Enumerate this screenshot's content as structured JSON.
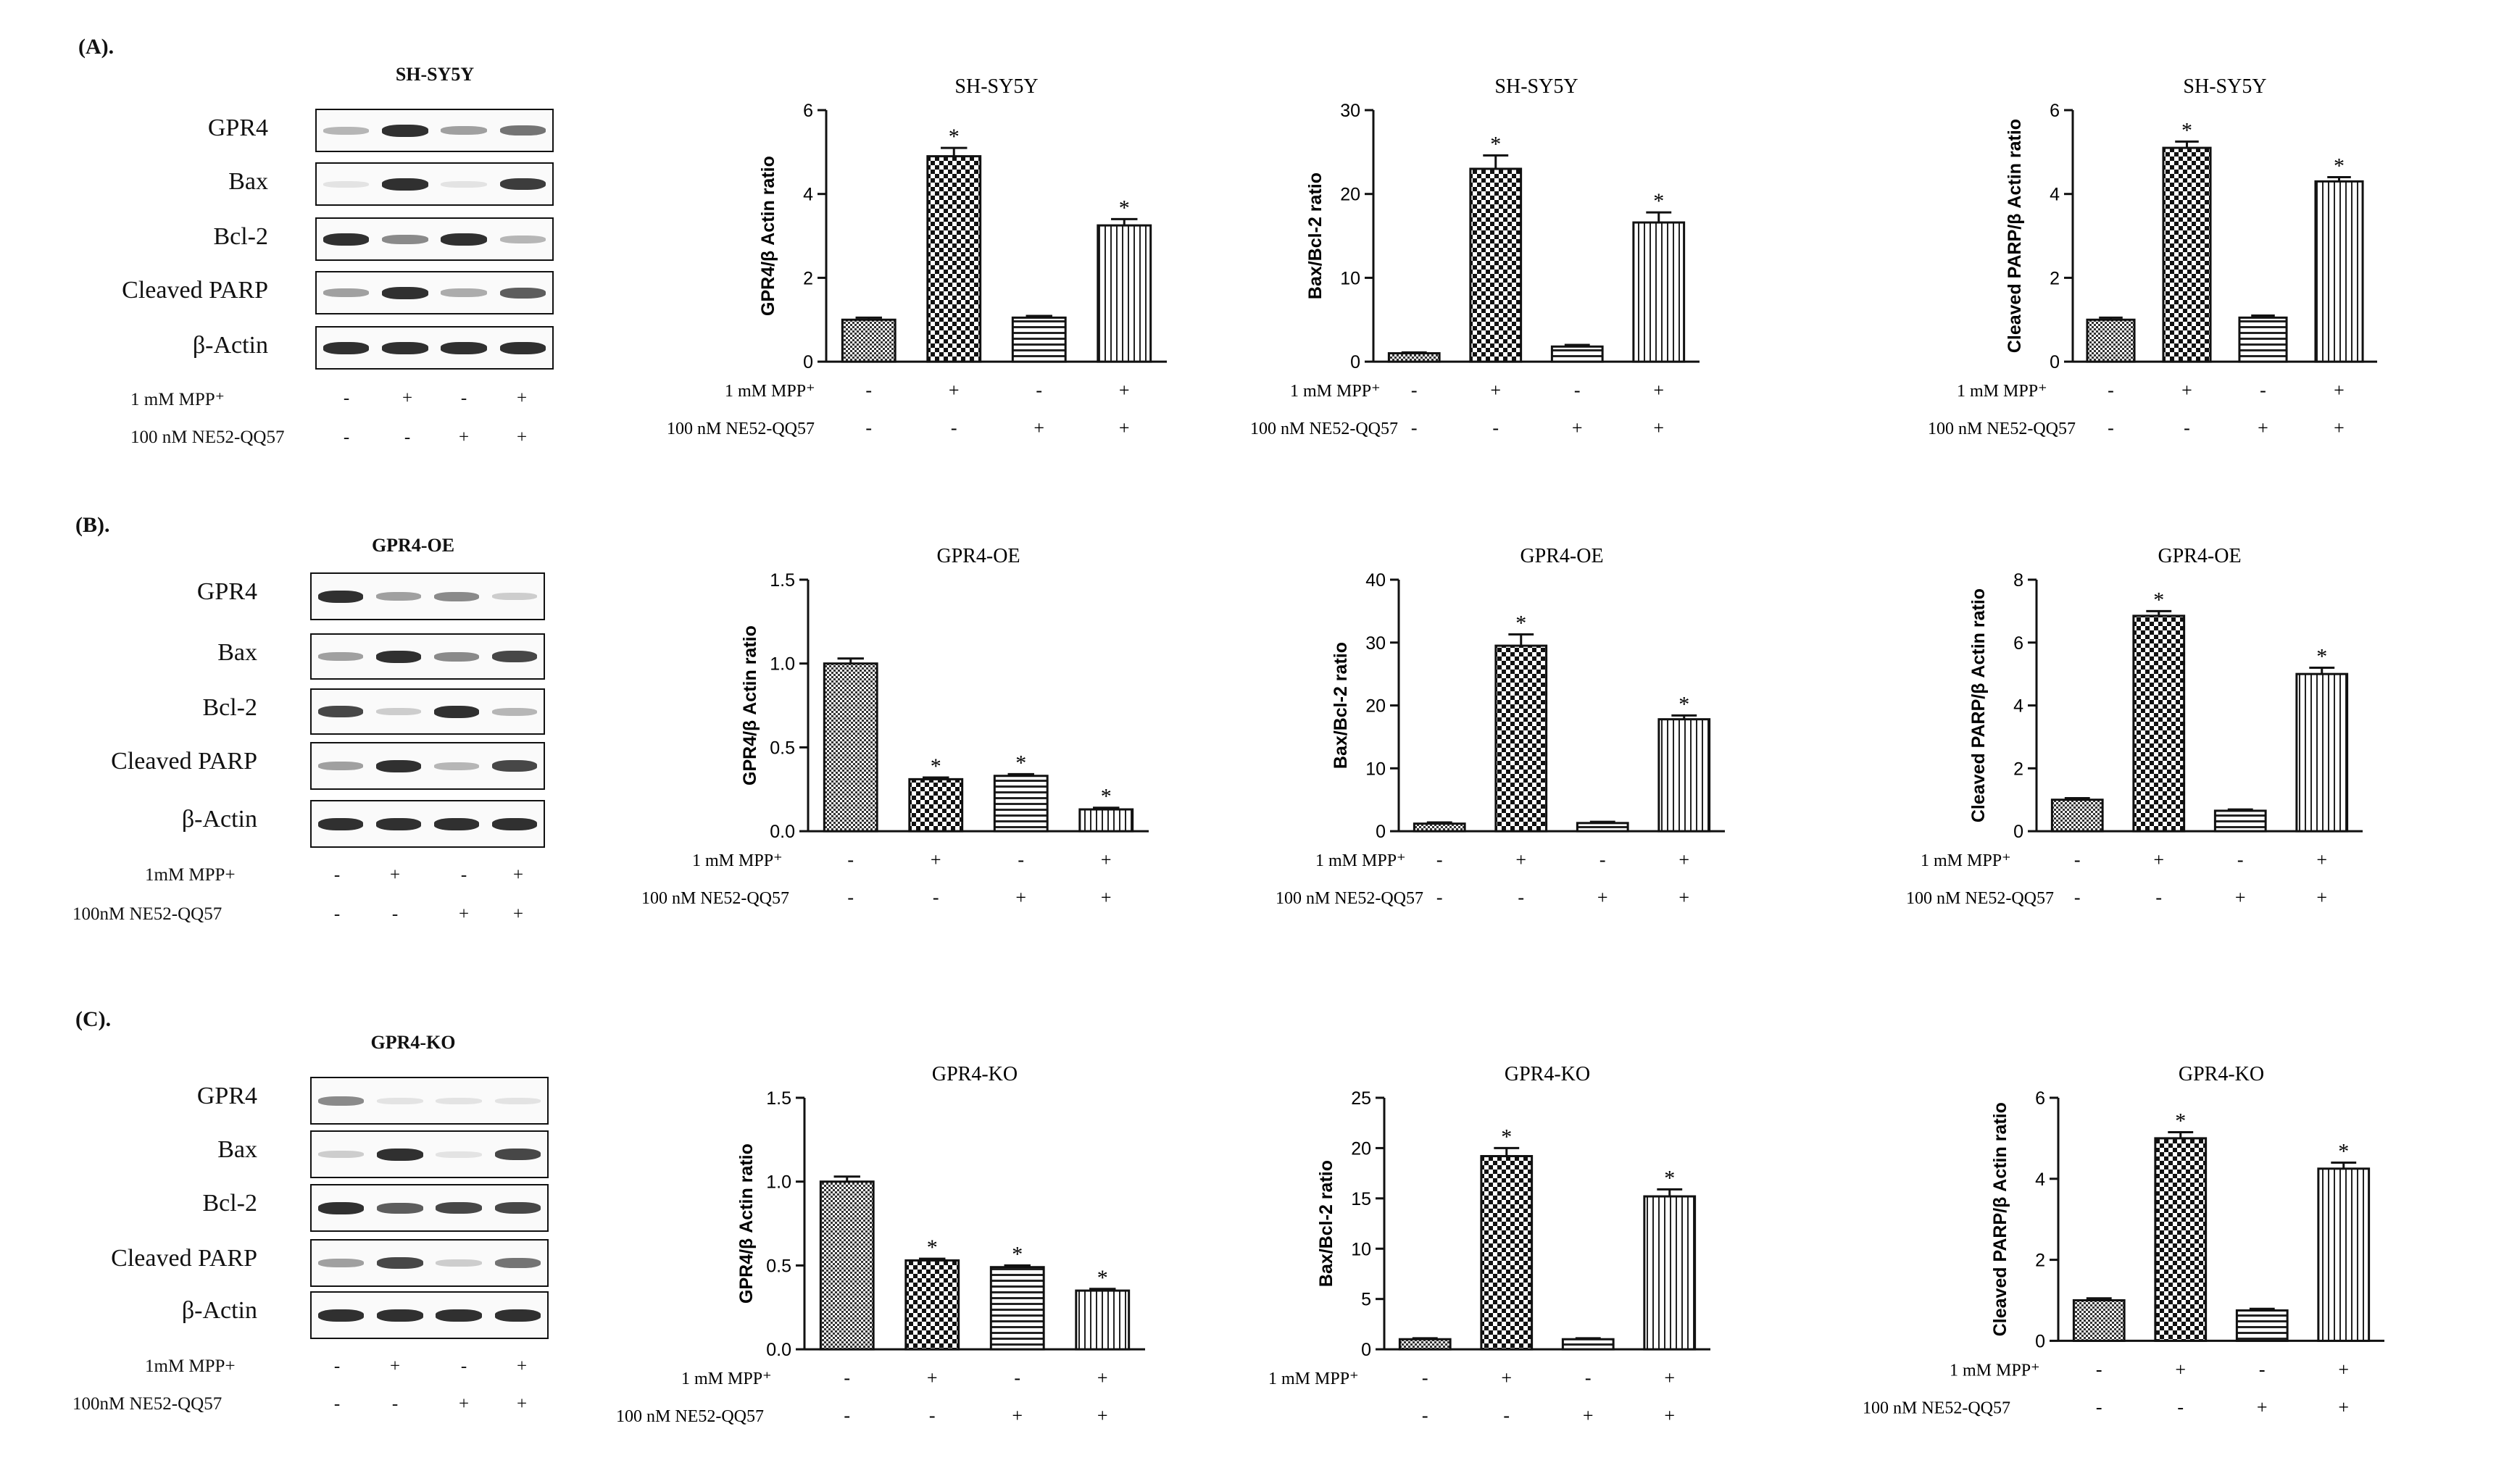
{
  "panels": [
    {
      "label": "(A).",
      "blot": {
        "title": "SH-SY5Y",
        "rows": [
          "GPR4",
          "Bax",
          "Bcl-2",
          "Cleaved PARP",
          "β-Actin"
        ],
        "treatment1": "1 mM MPP⁺",
        "treatment2": "100 nM NE52-QQ57",
        "signs1": [
          "-",
          "+",
          "-",
          "+"
        ],
        "signs2": [
          "-",
          "-",
          "+",
          "+"
        ]
      }
    },
    {
      "label": "(B).",
      "blot": {
        "title": "GPR4-OE",
        "rows": [
          "GPR4",
          "Bax",
          "Bcl-2",
          "Cleaved PARP",
          "β-Actin"
        ],
        "treatment1": "1mM MPP+",
        "treatment2": "100nM NE52-QQ57",
        "signs1": [
          "-",
          "+",
          "-",
          "+"
        ],
        "signs2": [
          "-",
          "-",
          "+",
          "+"
        ]
      }
    },
    {
      "label": "(C).",
      "blot": {
        "title": "GPR4-KO",
        "rows": [
          "GPR4",
          "Bax",
          "Bcl-2",
          "Cleaved PARP",
          "β-Actin"
        ],
        "treatment1": "1mM MPP+",
        "treatment2": "100nM NE52-QQ57",
        "signs1": [
          "-",
          "+",
          "-",
          "+"
        ],
        "signs2": [
          "-",
          "-",
          "+",
          "+"
        ]
      }
    }
  ],
  "chart_data": [
    {
      "type": "bar",
      "title": "SH-SY5Y",
      "ylabel": "GPR4/β Actin ratio",
      "ylim": [
        0,
        6
      ],
      "yticks": [
        "0",
        "2",
        "4",
        "6"
      ],
      "values": [
        1.0,
        4.9,
        1.05,
        3.25
      ],
      "errors": [
        0.05,
        0.2,
        0.04,
        0.15
      ],
      "significant": [
        false,
        true,
        false,
        true
      ],
      "treatment1": "1 mM MPP⁺",
      "treatment2": "100 nM NE52-QQ57",
      "signs1": [
        "-",
        "+",
        "-",
        "+"
      ],
      "signs2": [
        "-",
        "-",
        "+",
        "+"
      ]
    },
    {
      "type": "bar",
      "title": "SH-SY5Y",
      "ylabel": "Bax/Bcl-2 ratio",
      "ylim": [
        0,
        30
      ],
      "yticks": [
        "0",
        "10",
        "20",
        "30"
      ],
      "values": [
        1.0,
        23.0,
        1.8,
        16.6
      ],
      "errors": [
        0.1,
        1.6,
        0.2,
        1.2
      ],
      "significant": [
        false,
        true,
        false,
        true
      ],
      "treatment1": "1 mM MPP⁺",
      "treatment2": "100 nM NE52-QQ57",
      "signs1": [
        "-",
        "+",
        "-",
        "+"
      ],
      "signs2": [
        "-",
        "-",
        "+",
        "+"
      ]
    },
    {
      "type": "bar",
      "title": "SH-SY5Y",
      "ylabel": "Cleaved PARP/β Actin ratio",
      "ylim": [
        0,
        6
      ],
      "yticks": [
        "0",
        "2",
        "4",
        "6"
      ],
      "values": [
        1.0,
        5.1,
        1.05,
        4.3
      ],
      "errors": [
        0.05,
        0.15,
        0.05,
        0.1
      ],
      "significant": [
        false,
        true,
        false,
        true
      ],
      "treatment1": "1 mM MPP⁺",
      "treatment2": "100 nM NE52-QQ57",
      "signs1": [
        "-",
        "+",
        "-",
        "+"
      ],
      "signs2": [
        "-",
        "-",
        "+",
        "+"
      ]
    },
    {
      "type": "bar",
      "title": "GPR4-OE",
      "ylabel": "GPR4/β Actin ratio",
      "ylim": [
        0,
        1.5
      ],
      "yticks": [
        "0.0",
        "0.5",
        "1.0",
        "1.5"
      ],
      "values": [
        1.0,
        0.31,
        0.33,
        0.13
      ],
      "errors": [
        0.03,
        0.01,
        0.01,
        0.01
      ],
      "significant": [
        false,
        true,
        true,
        true
      ],
      "treatment1": "1 mM MPP⁺",
      "treatment2": "100 nM NE52-QQ57",
      "signs1": [
        "-",
        "+",
        "-",
        "+"
      ],
      "signs2": [
        "-",
        "-",
        "+",
        "+"
      ]
    },
    {
      "type": "bar",
      "title": "GPR4-OE",
      "ylabel": "Bax/Bcl-2 ratio",
      "ylim": [
        0,
        40
      ],
      "yticks": [
        "0",
        "10",
        "20",
        "30",
        "40"
      ],
      "values": [
        1.2,
        29.5,
        1.3,
        17.8
      ],
      "errors": [
        0.2,
        1.8,
        0.2,
        0.6
      ],
      "significant": [
        false,
        true,
        false,
        true
      ],
      "treatment1": "1 mM MPP⁺",
      "treatment2": "100 nM NE52-QQ57",
      "signs1": [
        "-",
        "+",
        "-",
        "+"
      ],
      "signs2": [
        "-",
        "-",
        "+",
        "+"
      ]
    },
    {
      "type": "bar",
      "title": "GPR4-OE",
      "ylabel": "Cleaved PARP/β Actin ratio",
      "ylim": [
        0,
        8
      ],
      "yticks": [
        "0",
        "2",
        "4",
        "6",
        "8"
      ],
      "values": [
        1.0,
        6.85,
        0.65,
        5.0
      ],
      "errors": [
        0.05,
        0.15,
        0.04,
        0.2
      ],
      "significant": [
        false,
        true,
        false,
        true
      ],
      "treatment1": "1 mM MPP⁺",
      "treatment2": "100 nM NE52-QQ57",
      "signs1": [
        "-",
        "+",
        "-",
        "+"
      ],
      "signs2": [
        "-",
        "-",
        "+",
        "+"
      ]
    },
    {
      "type": "bar",
      "title": "GPR4-KO",
      "ylabel": "GPR4/β Actin ratio",
      "ylim": [
        0,
        1.5
      ],
      "yticks": [
        "0.0",
        "0.5",
        "1.0",
        "1.5"
      ],
      "values": [
        1.0,
        0.53,
        0.49,
        0.35
      ],
      "errors": [
        0.03,
        0.01,
        0.01,
        0.01
      ],
      "significant": [
        false,
        true,
        true,
        true
      ],
      "treatment1": "1 mM MPP⁺",
      "treatment2": "100 nM NE52-QQ57",
      "signs1": [
        "-",
        "+",
        "-",
        "+"
      ],
      "signs2": [
        "-",
        "-",
        "+",
        "+"
      ]
    },
    {
      "type": "bar",
      "title": "GPR4-KO",
      "ylabel": "Bax/Bcl-2 ratio",
      "ylim": [
        0,
        25
      ],
      "yticks": [
        "0",
        "5",
        "10",
        "15",
        "20",
        "25"
      ],
      "values": [
        1.0,
        19.2,
        1.0,
        15.2
      ],
      "errors": [
        0.1,
        0.8,
        0.1,
        0.7
      ],
      "significant": [
        false,
        true,
        false,
        true
      ],
      "treatment1": "1 mM MPP⁺",
      "treatment2": "",
      "signs1": [
        "-",
        "+",
        "-",
        "+"
      ],
      "signs2": [
        "-",
        "-",
        "+",
        "+"
      ]
    },
    {
      "type": "bar",
      "title": "GPR4-KO",
      "ylabel": "Cleaved PARP/β Actin ratio",
      "ylim": [
        0,
        6
      ],
      "yticks": [
        "0",
        "2",
        "4",
        "6"
      ],
      "values": [
        1.0,
        5.0,
        0.75,
        4.25
      ],
      "errors": [
        0.05,
        0.15,
        0.04,
        0.15
      ],
      "significant": [
        false,
        true,
        false,
        true
      ],
      "treatment1": "1 mM MPP⁺",
      "treatment2": "100 nM NE52-QQ57",
      "signs1": [
        "-",
        "+",
        "-",
        "+"
      ],
      "signs2": [
        "-",
        "-",
        "+",
        "+"
      ]
    }
  ]
}
